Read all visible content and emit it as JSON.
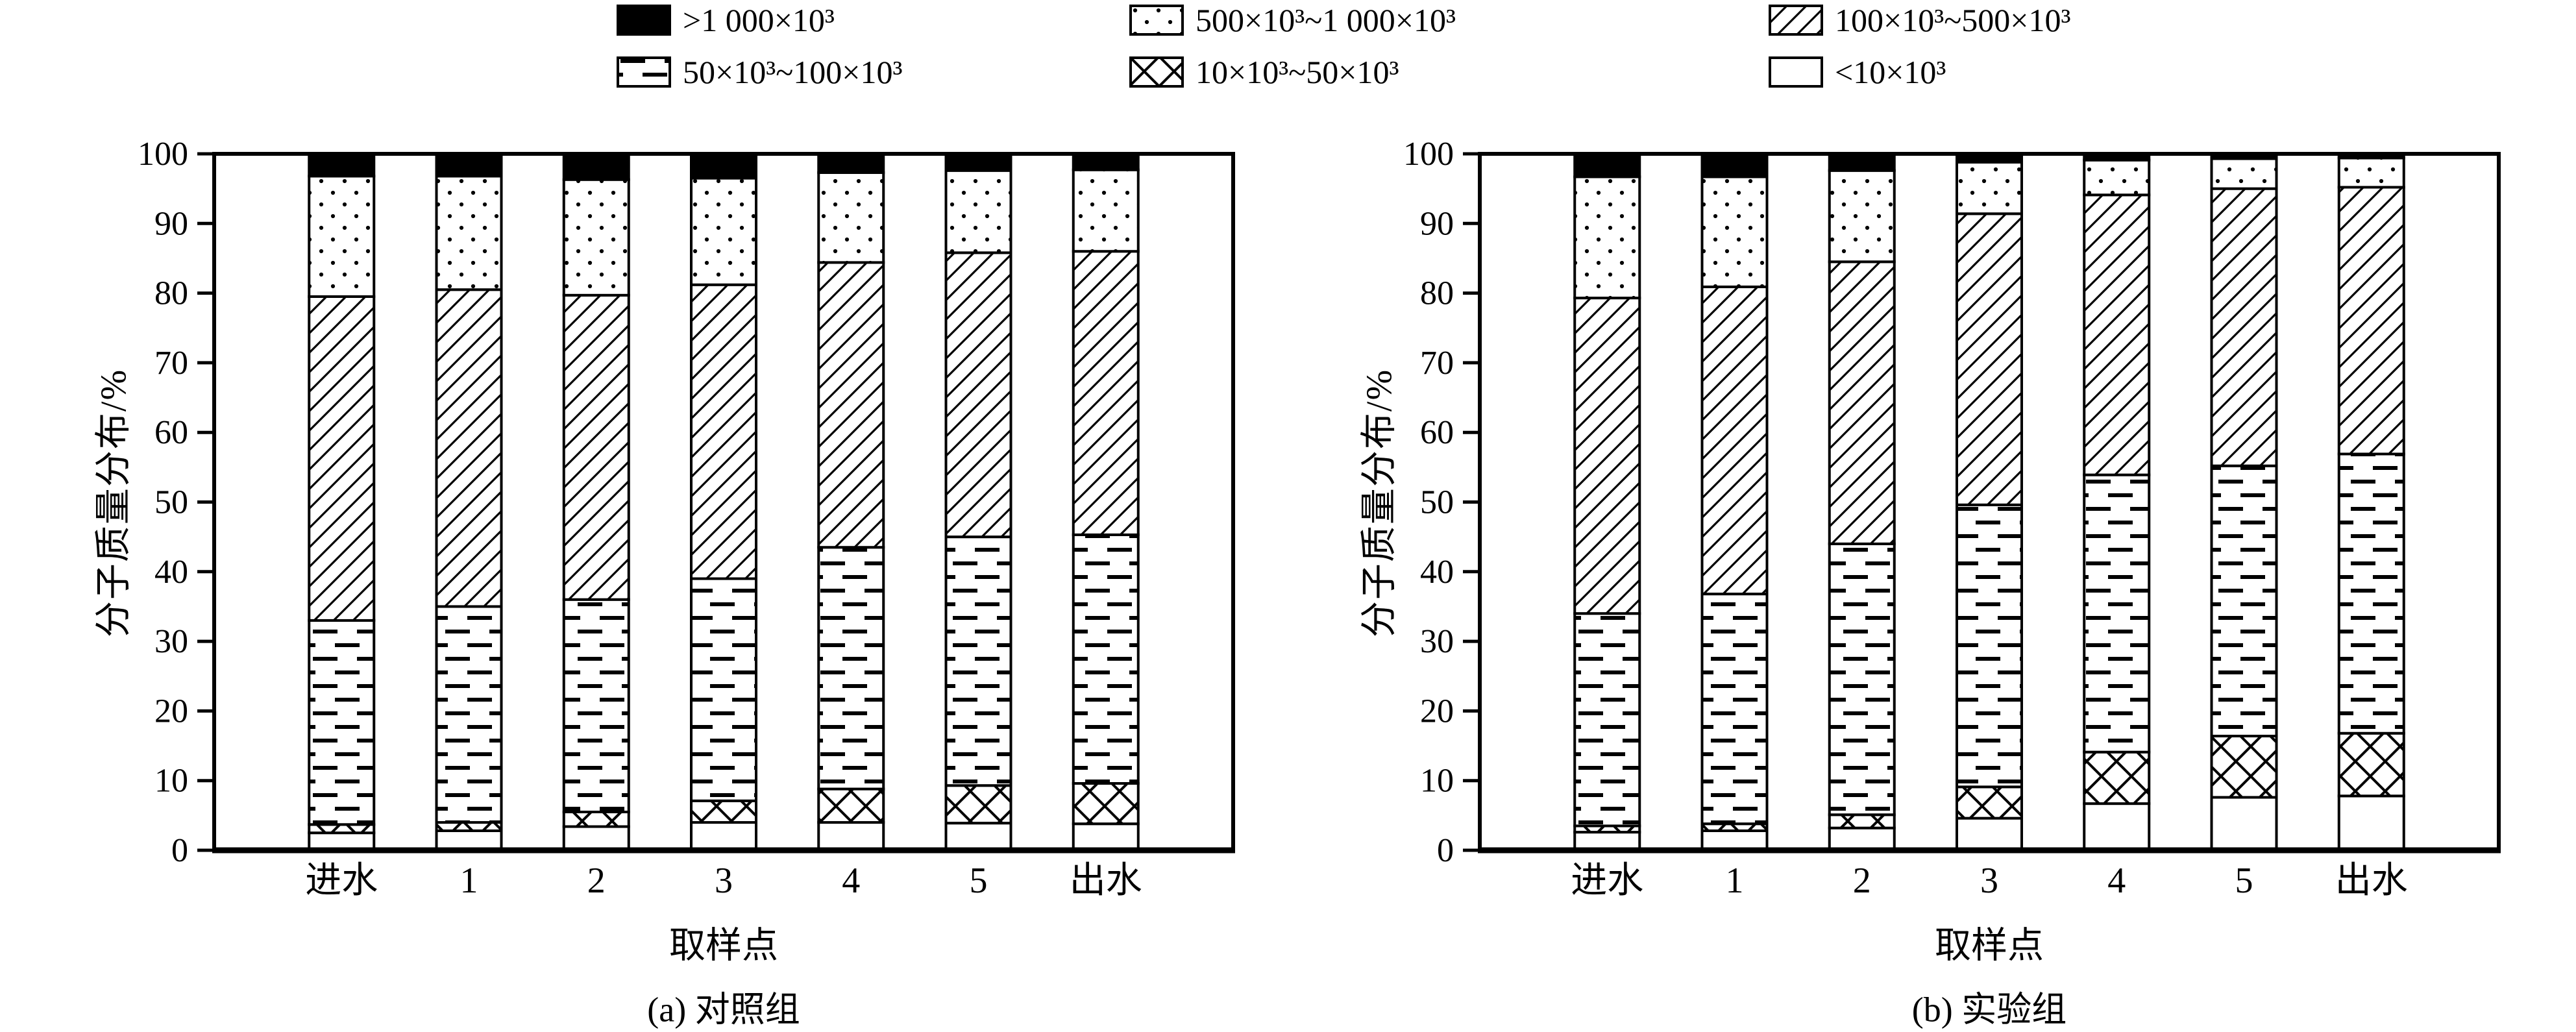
{
  "figure": {
    "background": "#ffffff",
    "ink_color": "#000000"
  },
  "legend": {
    "position": "top",
    "items": [
      {
        "label": ">1 000×10³",
        "pattern": "solid-black"
      },
      {
        "label": "500×10³~1 000×10³",
        "pattern": "dotted"
      },
      {
        "label": "100×10³~500×10³",
        "pattern": "hatch"
      },
      {
        "label": "50×10³~100×10³",
        "pattern": "dashed"
      },
      {
        "label": "10×10³~50×10³",
        "pattern": "crosshatch"
      },
      {
        "label": "<10×10³",
        "pattern": "white"
      }
    ]
  },
  "chart_data": [
    {
      "type": "bar",
      "stacked": true,
      "title": "(a) 对照组",
      "xlabel": "取样点",
      "ylabel": "分子质量分布/%",
      "ylim": [
        0,
        100
      ],
      "ytick_step": 10,
      "grid": false,
      "categories": [
        "进水",
        "1",
        "2",
        "3",
        "4",
        "5",
        "出水"
      ],
      "series": [
        {
          "name": "<10×10³",
          "pattern": "white",
          "values": [
            2.5,
            2.8,
            3.4,
            4.0,
            4.0,
            3.9,
            3.8
          ]
        },
        {
          "name": "10×10³~50×10³",
          "pattern": "crosshatch",
          "values": [
            1.2,
            1.2,
            2.1,
            3.1,
            4.8,
            5.4,
            5.8
          ]
        },
        {
          "name": "50×10³~100×10³",
          "pattern": "dashed",
          "values": [
            29.3,
            31.0,
            30.5,
            31.9,
            34.7,
            35.7,
            35.7
          ]
        },
        {
          "name": "100×10³~500×10³",
          "pattern": "hatch",
          "values": [
            46.5,
            45.5,
            43.7,
            42.2,
            40.9,
            40.8,
            40.7
          ]
        },
        {
          "name": "500×10³~1 000×10³",
          "pattern": "dotted",
          "values": [
            17.3,
            16.3,
            16.6,
            15.3,
            12.9,
            11.8,
            11.7
          ]
        },
        {
          "name": ">1 000×10³",
          "pattern": "solid-black",
          "values": [
            3.2,
            3.2,
            3.7,
            3.5,
            2.7,
            2.4,
            2.3
          ]
        }
      ]
    },
    {
      "type": "bar",
      "stacked": true,
      "title": "(b) 实验组",
      "xlabel": "取样点",
      "ylabel": "分子质量分布/%",
      "ylim": [
        0,
        100
      ],
      "ytick_step": 10,
      "grid": false,
      "categories": [
        "进水",
        "1",
        "2",
        "3",
        "4",
        "5",
        "出水"
      ],
      "series": [
        {
          "name": "<10×10³",
          "pattern": "white",
          "values": [
            2.6,
            2.8,
            3.2,
            4.6,
            6.7,
            7.6,
            7.8
          ]
        },
        {
          "name": "10×10³~50×10³",
          "pattern": "crosshatch",
          "values": [
            0.9,
            1.0,
            1.9,
            4.5,
            7.4,
            8.8,
            9.0
          ]
        },
        {
          "name": "50×10³~100×10³",
          "pattern": "dashed",
          "values": [
            30.5,
            33.0,
            38.9,
            40.5,
            39.8,
            38.8,
            40.1
          ]
        },
        {
          "name": "100×10³~500×10³",
          "pattern": "hatch",
          "values": [
            45.3,
            44.1,
            40.5,
            41.8,
            40.2,
            39.8,
            38.3
          ]
        },
        {
          "name": "500×10³~1 000×10³",
          "pattern": "dotted",
          "values": [
            17.4,
            15.8,
            13.1,
            7.4,
            5.0,
            4.3,
            4.2
          ]
        },
        {
          "name": ">1 000×10³",
          "pattern": "solid-black",
          "values": [
            3.3,
            3.3,
            2.4,
            1.2,
            0.9,
            0.7,
            0.6
          ]
        }
      ]
    }
  ]
}
